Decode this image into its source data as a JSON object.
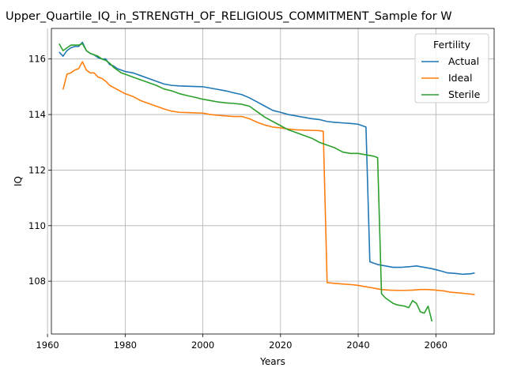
{
  "chart_data": {
    "type": "line",
    "title": "Upper_Quartile_IQ_in_STRENGTH_OF_RELIGIOUS_COMMITMENT_Sample for W",
    "xlabel": "Years",
    "ylabel": "IQ",
    "xlim": [
      1961,
      2075
    ],
    "ylim": [
      106.1,
      117.1
    ],
    "xticks": [
      1960,
      1980,
      2000,
      2020,
      2040,
      2060
    ],
    "yticks": [
      108,
      110,
      112,
      114,
      116
    ],
    "grid": true,
    "legend": {
      "title": "Fertility",
      "placement": "top-right"
    },
    "series": [
      {
        "name": "Actual",
        "color": "#1f77b4",
        "x": [
          1963,
          1964,
          1965,
          1966,
          1967,
          1968,
          1969,
          1970,
          1971,
          1972,
          1973,
          1974,
          1975,
          1976,
          1977,
          1978,
          1979,
          1980,
          1982,
          1984,
          1986,
          1988,
          1990,
          1992,
          1994,
          1996,
          1998,
          2000,
          2002,
          2004,
          2006,
          2008,
          2010,
          2012,
          2014,
          2016,
          2018,
          2020,
          2022,
          2024,
          2026,
          2028,
          2030,
          2032,
          2034,
          2036,
          2038,
          2040,
          2042,
          2043,
          2045,
          2047,
          2049,
          2051,
          2053,
          2055,
          2057,
          2059,
          2061,
          2063,
          2065,
          2067,
          2069,
          2070
        ],
        "y": [
          116.25,
          116.1,
          116.3,
          116.4,
          116.45,
          116.45,
          116.6,
          116.3,
          116.2,
          116.15,
          116.05,
          116.0,
          116.0,
          115.8,
          115.75,
          115.65,
          115.6,
          115.55,
          115.5,
          115.4,
          115.3,
          115.2,
          115.1,
          115.05,
          115.03,
          115.02,
          115.01,
          115.0,
          114.95,
          114.9,
          114.85,
          114.78,
          114.72,
          114.6,
          114.45,
          114.3,
          114.15,
          114.08,
          114.0,
          113.95,
          113.9,
          113.85,
          113.82,
          113.75,
          113.72,
          113.7,
          113.68,
          113.65,
          113.55,
          108.7,
          108.6,
          108.55,
          108.5,
          108.5,
          108.52,
          108.55,
          108.5,
          108.45,
          108.38,
          108.3,
          108.28,
          108.25,
          108.27,
          108.3
        ]
      },
      {
        "name": "Ideal",
        "color": "#ff7f0e",
        "x": [
          1964,
          1965,
          1966,
          1967,
          1968,
          1969,
          1970,
          1971,
          1972,
          1973,
          1974,
          1975,
          1976,
          1978,
          1980,
          1982,
          1984,
          1986,
          1988,
          1990,
          1992,
          1994,
          1996,
          1998,
          2000,
          2002,
          2004,
          2006,
          2008,
          2010,
          2012,
          2014,
          2016,
          2018,
          2020,
          2022,
          2024,
          2026,
          2028,
          2030,
          2031,
          2032,
          2034,
          2036,
          2038,
          2040,
          2042,
          2044,
          2046,
          2048,
          2050,
          2052,
          2054,
          2056,
          2058,
          2060,
          2062,
          2064,
          2066,
          2068,
          2070
        ],
        "y": [
          114.9,
          115.45,
          115.5,
          115.6,
          115.65,
          115.9,
          115.6,
          115.5,
          115.5,
          115.35,
          115.3,
          115.2,
          115.05,
          114.9,
          114.75,
          114.65,
          114.5,
          114.4,
          114.3,
          114.2,
          114.12,
          114.08,
          114.07,
          114.06,
          114.05,
          114.0,
          113.97,
          113.95,
          113.93,
          113.93,
          113.85,
          113.72,
          113.62,
          113.55,
          113.52,
          113.48,
          113.45,
          113.44,
          113.43,
          113.42,
          113.4,
          107.95,
          107.92,
          107.9,
          107.88,
          107.85,
          107.8,
          107.75,
          107.7,
          107.68,
          107.67,
          107.67,
          107.68,
          107.7,
          107.7,
          107.68,
          107.65,
          107.6,
          107.58,
          107.55,
          107.52
        ]
      },
      {
        "name": "Sterile",
        "color": "#2ca02c",
        "x": [
          1963,
          1964,
          1965,
          1966,
          1967,
          1968,
          1969,
          1970,
          1971,
          1972,
          1973,
          1974,
          1975,
          1976,
          1977,
          1978,
          1979,
          1980,
          1982,
          1984,
          1986,
          1988,
          1990,
          1992,
          1994,
          1996,
          1998,
          2000,
          2002,
          2004,
          2006,
          2008,
          2010,
          2012,
          2014,
          2016,
          2018,
          2020,
          2022,
          2024,
          2026,
          2028,
          2030,
          2032,
          2034,
          2036,
          2038,
          2040,
          2042,
          2044,
          2045,
          2046,
          2047,
          2048,
          2049,
          2050,
          2052,
          2053,
          2054,
          2055,
          2056,
          2057,
          2058,
          2059
        ],
        "y": [
          116.55,
          116.3,
          116.4,
          116.5,
          116.5,
          116.5,
          116.55,
          116.3,
          116.2,
          116.15,
          116.1,
          116.0,
          115.95,
          115.85,
          115.7,
          115.6,
          115.5,
          115.45,
          115.35,
          115.25,
          115.15,
          115.05,
          114.92,
          114.85,
          114.75,
          114.68,
          114.62,
          114.55,
          114.5,
          114.45,
          114.42,
          114.4,
          114.37,
          114.3,
          114.1,
          113.9,
          113.75,
          113.6,
          113.45,
          113.35,
          113.25,
          113.15,
          113.0,
          112.9,
          112.8,
          112.65,
          112.6,
          112.6,
          112.55,
          112.5,
          112.45,
          107.55,
          107.4,
          107.3,
          107.2,
          107.15,
          107.1,
          107.05,
          107.3,
          107.2,
          106.9,
          106.85,
          107.1,
          106.55
        ]
      }
    ]
  }
}
